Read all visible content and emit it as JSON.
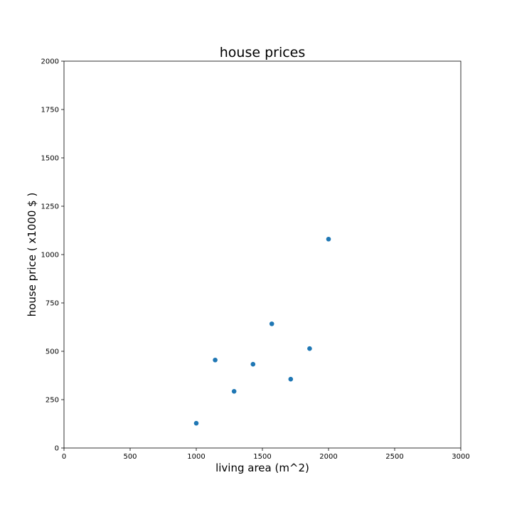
{
  "chart_data": {
    "type": "scatter",
    "title": "house prices",
    "xlabel": "living area (m^2)",
    "ylabel": "house price ( x1000 $ )",
    "xlim": [
      0,
      3000
    ],
    "ylim": [
      0,
      2000
    ],
    "x_ticks": [
      "0",
      "500",
      "1000",
      "1500",
      "2000",
      "2500",
      "3000"
    ],
    "y_ticks": [
      "0",
      "250",
      "500",
      "750",
      "1000",
      "1250",
      "1500",
      "1750",
      "2000"
    ],
    "grid": false,
    "series": [
      {
        "color": "#1f77b4",
        "points": [
          {
            "x": 1000,
            "y": 128
          },
          {
            "x": 1143,
            "y": 455
          },
          {
            "x": 1286,
            "y": 293
          },
          {
            "x": 1429,
            "y": 433
          },
          {
            "x": 1571,
            "y": 642
          },
          {
            "x": 1714,
            "y": 356
          },
          {
            "x": 1857,
            "y": 514
          },
          {
            "x": 2000,
            "y": 1080
          }
        ]
      }
    ]
  }
}
